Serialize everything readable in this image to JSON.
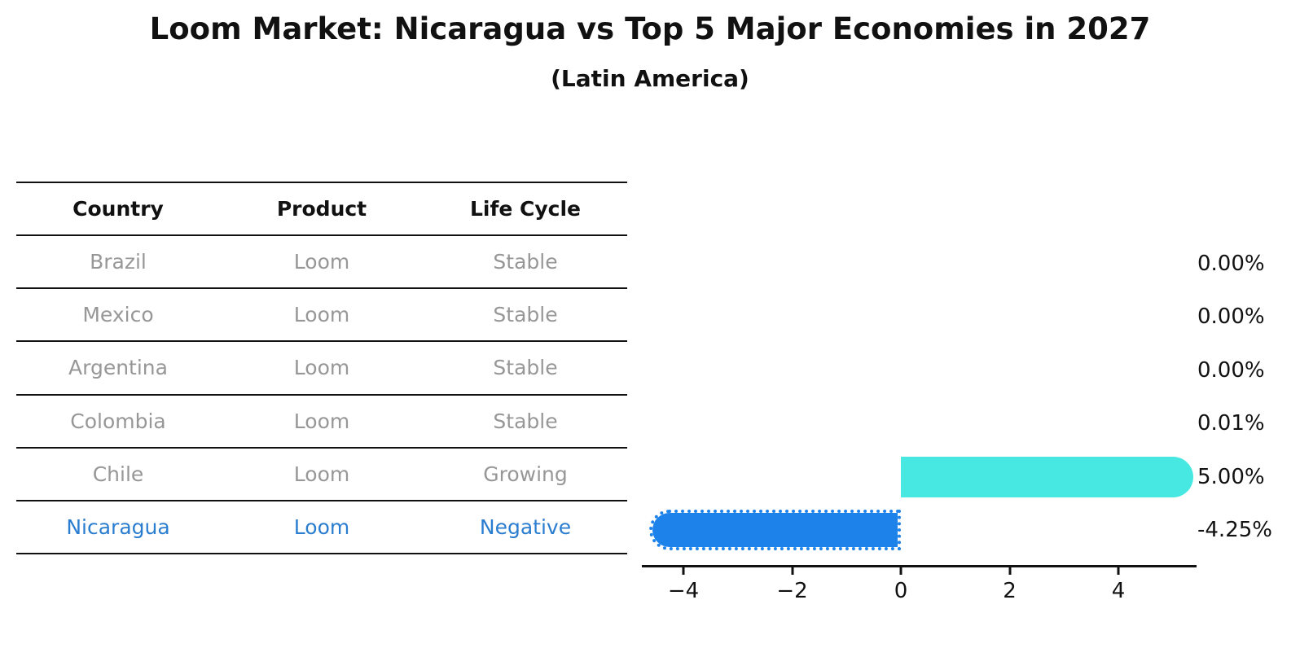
{
  "title": "Loom Market: Nicaragua vs Top 5 Major Economies in 2027",
  "subtitle": "(Latin America)",
  "table": {
    "headers": [
      "Country",
      "Product",
      "Life Cycle"
    ],
    "rows": [
      {
        "country": "Brazil",
        "product": "Loom",
        "life_cycle": "Stable",
        "highlighted": false
      },
      {
        "country": "Mexico",
        "product": "Loom",
        "life_cycle": "Stable",
        "highlighted": false
      },
      {
        "country": "Argentina",
        "product": "Loom",
        "life_cycle": "Stable",
        "highlighted": false
      },
      {
        "country": "Colombia",
        "product": "Loom",
        "life_cycle": "Stable",
        "highlighted": false
      },
      {
        "country": "Chile",
        "product": "Loom",
        "life_cycle": "Growing",
        "highlighted": false
      },
      {
        "country": "Nicaragua",
        "product": "Loom",
        "life_cycle": "Negative",
        "highlighted": true
      }
    ]
  },
  "chart_data": {
    "type": "bar",
    "orientation": "horizontal",
    "title": "Loom Market: Nicaragua vs Top 5 Major Economies in 2027 (Latin America)",
    "categories": [
      "Brazil",
      "Mexico",
      "Argentina",
      "Colombia",
      "Chile",
      "Nicaragua"
    ],
    "values": [
      0.0,
      0.0,
      0.0,
      0.01,
      5.0,
      -4.25
    ],
    "value_labels": [
      "0.00%",
      "0.00%",
      "0.00%",
      "0.01%",
      "5.00%",
      "-4.25%"
    ],
    "x_ticks": [
      "−4",
      "−2",
      "0",
      "2",
      "4"
    ],
    "x_tick_values": [
      -4,
      -2,
      0,
      2,
      4
    ],
    "xlim": [
      -4.75,
      5.45
    ],
    "xlabel": "",
    "ylabel": "",
    "grid": false,
    "legend": "none",
    "positive_bar_color": "#48e8e2",
    "negative_bar_color": "#1e82eb",
    "highlight_text_color": "#2b7dd0",
    "row_text_color": "#979797",
    "axis_color": "#111111"
  }
}
